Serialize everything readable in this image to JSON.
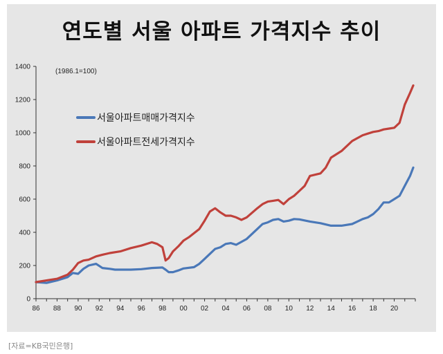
{
  "title": "연도별 서울 아파트 가격지수 추이",
  "source": "[자료=KB국민은행]",
  "chart_data": {
    "type": "line",
    "annotation": "(1986.1=100)",
    "xlim": [
      86,
      122
    ],
    "ylim": [
      0,
      1400
    ],
    "yticks": [
      0,
      200,
      400,
      600,
      800,
      1000,
      1200,
      1400
    ],
    "xticks": [
      {
        "v": 86,
        "label": "86"
      },
      {
        "v": 88,
        "label": "88"
      },
      {
        "v": 90,
        "label": "90"
      },
      {
        "v": 92,
        "label": "92"
      },
      {
        "v": 94,
        "label": "94"
      },
      {
        "v": 96,
        "label": "96"
      },
      {
        "v": 98,
        "label": "98"
      },
      {
        "v": 100,
        "label": "00"
      },
      {
        "v": 102,
        "label": "02"
      },
      {
        "v": 104,
        "label": "04"
      },
      {
        "v": 106,
        "label": "06"
      },
      {
        "v": 108,
        "label": "08"
      },
      {
        "v": 110,
        "label": "10"
      },
      {
        "v": 112,
        "label": "12"
      },
      {
        "v": 114,
        "label": "14"
      },
      {
        "v": 116,
        "label": "16"
      },
      {
        "v": 118,
        "label": "18"
      },
      {
        "v": 120,
        "label": "20"
      }
    ],
    "series": [
      {
        "name": "서울아파트매매가격지수",
        "color": "#4a78b8",
        "x": [
          86,
          87,
          88,
          89,
          89.5,
          90,
          90.5,
          91,
          91.7,
          92.3,
          93,
          93.5,
          94,
          95,
          96,
          97,
          98,
          98.3,
          98.6,
          99,
          99.5,
          100,
          101,
          101.5,
          102,
          102.5,
          103,
          103.5,
          104,
          104.5,
          105,
          106,
          107,
          107.5,
          108,
          108.5,
          109,
          109.5,
          110,
          110.5,
          111,
          112,
          113,
          114,
          115,
          116,
          116.5,
          117,
          117.5,
          118,
          118.5,
          119,
          119.5,
          120,
          120.5,
          121,
          121.5,
          121.8
        ],
        "y": [
          100,
          95,
          110,
          130,
          155,
          150,
          180,
          200,
          210,
          185,
          180,
          175,
          175,
          175,
          178,
          185,
          188,
          175,
          160,
          160,
          170,
          182,
          190,
          210,
          240,
          270,
          300,
          310,
          330,
          335,
          325,
          360,
          420,
          450,
          460,
          475,
          480,
          465,
          470,
          480,
          478,
          465,
          455,
          440,
          440,
          450,
          465,
          480,
          490,
          510,
          540,
          580,
          580,
          600,
          620,
          680,
          740,
          790
        ]
      },
      {
        "name": "서울아파트전세가격지수",
        "color": "#c0413b",
        "x": [
          86,
          87,
          88,
          89,
          89.5,
          90,
          90.5,
          91,
          91.7,
          92.3,
          93,
          94,
          95,
          96,
          97,
          97.5,
          98,
          98.3,
          98.6,
          99,
          99.5,
          100,
          100.5,
          101,
          101.5,
          102,
          102.5,
          103,
          103.5,
          104,
          104.5,
          105,
          105.5,
          106,
          107,
          107.5,
          108,
          108.5,
          109,
          109.5,
          110,
          110.5,
          111,
          111.5,
          112,
          113,
          113.5,
          114,
          115,
          116,
          117,
          117.5,
          118,
          118.5,
          119,
          119.5,
          120,
          120.5,
          121,
          121.5,
          121.8
        ],
        "y": [
          100,
          110,
          120,
          145,
          175,
          215,
          230,
          235,
          255,
          265,
          275,
          285,
          305,
          320,
          340,
          330,
          310,
          230,
          245,
          285,
          315,
          350,
          370,
          395,
          420,
          470,
          525,
          545,
          520,
          500,
          500,
          490,
          475,
          490,
          545,
          570,
          585,
          590,
          595,
          570,
          600,
          620,
          650,
          680,
          740,
          755,
          790,
          850,
          890,
          950,
          985,
          995,
          1005,
          1010,
          1020,
          1025,
          1030,
          1060,
          1170,
          1240,
          1285
        ]
      }
    ]
  }
}
